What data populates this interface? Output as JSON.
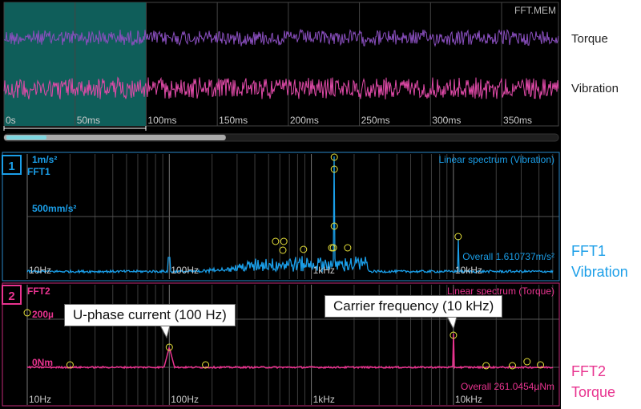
{
  "file_name": "FFT.MEM",
  "waveform": {
    "channels": [
      {
        "name": "Torque",
        "color": "#8a4fbf"
      },
      {
        "name": "Vibration",
        "color": "#e04aa8"
      }
    ],
    "time_ticks": [
      "0s",
      "50ms",
      "100ms",
      "150ms",
      "200ms",
      "250ms",
      "300ms",
      "350ms"
    ],
    "analysis_window": {
      "start_ms": 0,
      "end_ms": 100
    },
    "time_span_ms": 390,
    "scroll_position": 0.4
  },
  "fft1": {
    "number": "1",
    "name": "FFT1",
    "mode": "Linear spectrum (Vibration)",
    "y_top": "1m/s²",
    "y_mid": "500mm/s²",
    "overall": "Overall  1.610737m/s²",
    "side_line1": "FFT1",
    "side_line2": "Vibration",
    "color": "#1a9ee8",
    "x_labels": [
      "10Hz",
      "100Hz",
      "1kHz",
      "10kHz"
    ]
  },
  "fft2": {
    "number": "2",
    "name": "FFT2",
    "mode": "Linear spectrum (Torque)",
    "y_top": "200µ",
    "y_zero": "0Nm",
    "overall": "Overall  261.0454µNm",
    "side_line1": "FFT2",
    "side_line2": "Torque",
    "color": "#e8338f",
    "x_labels": [
      "10Hz",
      "100Hz",
      "1kHz",
      "10kHz"
    ]
  },
  "callouts": {
    "u_phase": "U-phase current (100 Hz)",
    "carrier": "Carrier frequency (10 kHz)"
  },
  "colors": {
    "grid": "#555555",
    "window": "#0f5e5a",
    "marker": "#e8e23a"
  }
}
